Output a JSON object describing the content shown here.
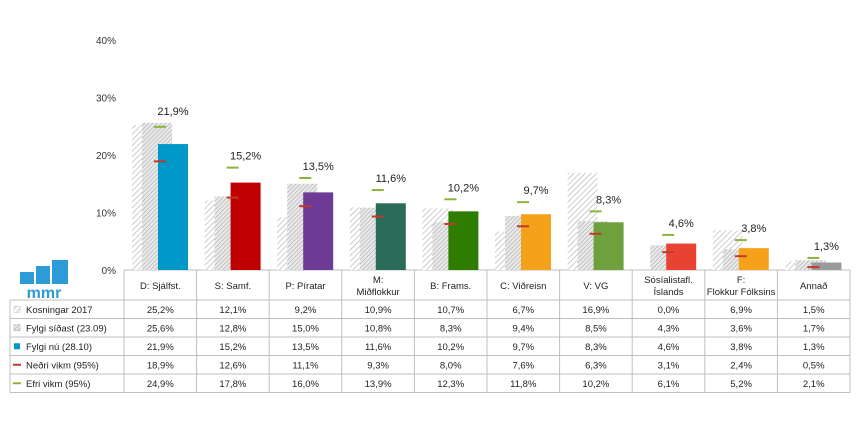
{
  "chart_data": {
    "type": "bar",
    "ylim": [
      0,
      40
    ],
    "yticks": [
      "0%",
      "10%",
      "20%",
      "30%",
      "40%"
    ],
    "categories": [
      "D: Sjálfst.",
      "S: Samf.",
      "P: Píratar",
      "M: Miðflokkur",
      "B: Frams.",
      "C: Viðreisn",
      "V: VG",
      "Sósíalistafl. Íslands",
      "F: Flokkur Fólksins",
      "Annað"
    ],
    "bar_colors": [
      "#0097c9",
      "#c00000",
      "#6d3a96",
      "#2a6b5a",
      "#2e7d00",
      "#f5a21a",
      "#6ea13e",
      "#e84332",
      "#f5a21a",
      "#9a9a9a"
    ],
    "series": [
      {
        "name": "Kosningar 2017",
        "values": [
          25.2,
          12.1,
          9.2,
          10.9,
          10.7,
          6.7,
          16.9,
          0.0,
          6.9,
          1.5
        ],
        "labels": [
          "25,2%",
          "12,1%",
          "9,2%",
          "10,9%",
          "10,7%",
          "6,7%",
          "16,9%",
          "0,0%",
          "6,9%",
          "1,5%"
        ]
      },
      {
        "name": "Fylgi síðast (23.09)",
        "values": [
          25.6,
          12.8,
          15.0,
          10.8,
          8.3,
          9.4,
          8.5,
          4.3,
          3.6,
          1.7
        ],
        "labels": [
          "25,6%",
          "12,8%",
          "15,0%",
          "10,8%",
          "8,3%",
          "9,4%",
          "8,5%",
          "4,3%",
          "3,6%",
          "1,7%"
        ]
      },
      {
        "name": "Fylgi nú (28.10)",
        "values": [
          21.9,
          15.2,
          13.5,
          11.6,
          10.2,
          9.7,
          8.3,
          4.6,
          3.8,
          1.3
        ],
        "labels": [
          "21,9%",
          "15,2%",
          "13,5%",
          "11,6%",
          "10,2%",
          "9,7%",
          "8,3%",
          "4,6%",
          "3,8%",
          "1,3%"
        ]
      },
      {
        "name": "Neðri vikm (95%)",
        "values": [
          18.9,
          12.6,
          11.1,
          9.3,
          8.0,
          7.6,
          6.3,
          3.1,
          2.4,
          0.5
        ],
        "labels": [
          "18,9%",
          "12,6%",
          "11,1%",
          "9,3%",
          "8,0%",
          "7,6%",
          "6,3%",
          "3,1%",
          "2,4%",
          "0,5%"
        ]
      },
      {
        "name": "Efri vikm (95%)",
        "values": [
          24.9,
          17.8,
          16.0,
          13.9,
          12.3,
          11.8,
          10.2,
          6.1,
          5.2,
          2.1
        ],
        "labels": [
          "24,9%",
          "17,8%",
          "16,0%",
          "13,9%",
          "12,3%",
          "11,8%",
          "10,2%",
          "6,1%",
          "5,2%",
          "2,1%"
        ]
      }
    ],
    "grid": false,
    "legend": "table-below"
  },
  "colors": {
    "hatch": "#b8b8b8",
    "lower_ci": "#c0392b",
    "upper_ci": "#8db33a",
    "logo": "#2d9bd7"
  },
  "logo": {
    "text": "mmr"
  }
}
